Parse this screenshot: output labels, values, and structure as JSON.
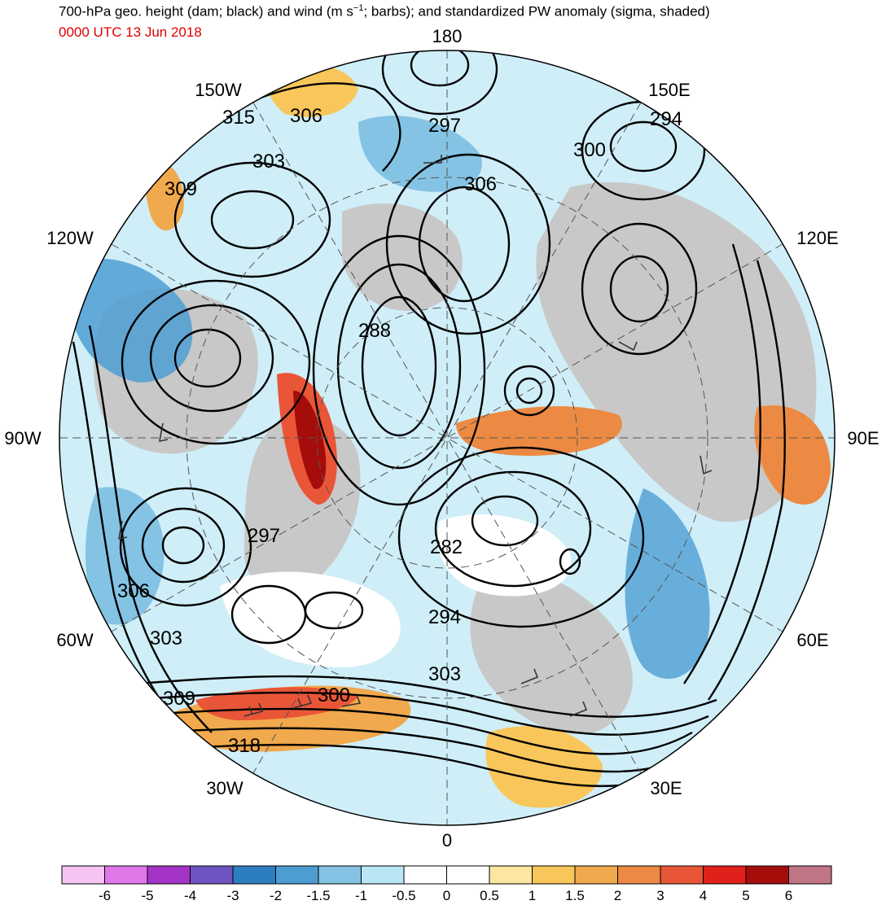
{
  "header": {
    "title_pre": "700-hPa geo. height (dam; black) and wind (m s",
    "title_sup": "−1",
    "title_post": "; barbs); and standardized PW anomaly (sigma, shaded)",
    "subtitle": "0000 UTC 13 Jun 2018"
  },
  "longitude_labels": {
    "top": "180",
    "bottom": "0",
    "left": "90W",
    "right": "90E",
    "nw_upper": "150W",
    "nw_lower": "120W",
    "ne_upper": "150E",
    "ne_lower": "120E",
    "sw_upper": "60W",
    "sw_lower": "30W",
    "se_upper": "60E",
    "se_lower": "30E"
  },
  "contour_values": [
    "315",
    "306",
    "303",
    "309",
    "297",
    "306",
    "294",
    "300",
    "288",
    "297",
    "282",
    "306",
    "303",
    "294",
    "309",
    "300",
    "303",
    "318"
  ],
  "colorbar": {
    "colors": [
      "#f6c3f3",
      "#df78e9",
      "#a433c7",
      "#6f55c1",
      "#2d7ec0",
      "#4d9dd3",
      "#84c3e4",
      "#b8e6f4",
      "#ffffff",
      "#ffffff",
      "#fde6a1",
      "#f8c65a",
      "#f1a94d",
      "#ec8a43",
      "#e95637",
      "#e0201b",
      "#a50d0b",
      "#c27586"
    ],
    "labels": [
      "-6",
      "-5",
      "-4",
      "-3",
      "-2",
      "-1.5",
      "-1",
      "-0.5",
      "0",
      "0.5",
      "1",
      "1.5",
      "2",
      "3",
      "4",
      "5",
      "6"
    ]
  },
  "colors": {
    "land_gray": "#c8c8c8",
    "subtitle_red": "#e00000",
    "contour_black": "#000000"
  }
}
